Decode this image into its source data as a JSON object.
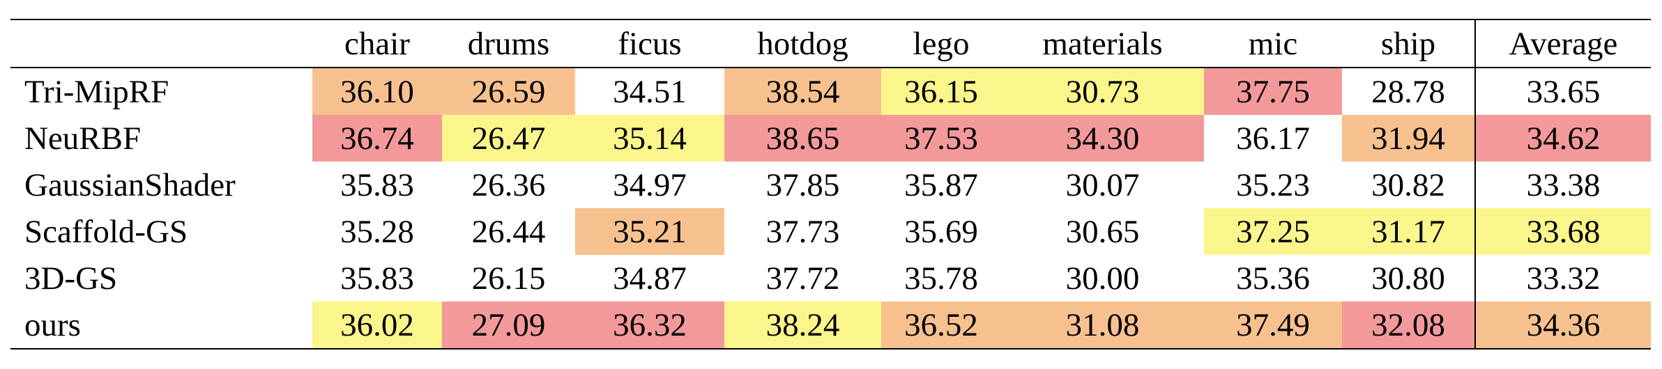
{
  "table": {
    "columns": [
      "chair",
      "drums",
      "ficus",
      "hotdog",
      "lego",
      "materials",
      "mic",
      "ship",
      "Average"
    ],
    "rows": [
      {
        "label": "Tri-MipRF",
        "cells": [
          "36.10",
          "26.59",
          "34.51",
          "38.54",
          "36.15",
          "30.73",
          "37.75",
          "28.78",
          "33.65"
        ],
        "colors": [
          "#f7c18f",
          "#f7c18f",
          null,
          "#f7c18f",
          "#fbf68b",
          "#fbf68b",
          "#f4999a",
          null,
          null
        ]
      },
      {
        "label": "NeuRBF",
        "cells": [
          "36.74",
          "26.47",
          "35.14",
          "38.65",
          "37.53",
          "34.30",
          "36.17",
          "31.94",
          "34.62"
        ],
        "colors": [
          "#f4999a",
          "#fbf68b",
          "#fbf68b",
          "#f4999a",
          "#f4999a",
          "#f4999a",
          null,
          "#f7c18f",
          "#f4999a"
        ]
      },
      {
        "label": "GaussianShader",
        "cells": [
          "35.83",
          "26.36",
          "34.97",
          "37.85",
          "35.87",
          "30.07",
          "35.23",
          "30.82",
          "33.38"
        ],
        "colors": [
          null,
          null,
          null,
          null,
          null,
          null,
          null,
          null,
          null
        ]
      },
      {
        "label": "Scaffold-GS",
        "cells": [
          "35.28",
          "26.44",
          "35.21",
          "37.73",
          "35.69",
          "30.65",
          "37.25",
          "31.17",
          "33.68"
        ],
        "colors": [
          null,
          null,
          "#f7c18f",
          null,
          null,
          null,
          "#fbf68b",
          "#fbf68b",
          "#fbf68b"
        ]
      },
      {
        "label": "3D-GS",
        "cells": [
          "35.83",
          "26.15",
          "34.87",
          "37.72",
          "35.78",
          "30.00",
          "35.36",
          "30.80",
          "33.32"
        ],
        "colors": [
          null,
          null,
          null,
          null,
          null,
          null,
          null,
          null,
          null
        ]
      },
      {
        "label": "ours",
        "cells": [
          "36.02",
          "27.09",
          "36.32",
          "38.24",
          "36.52",
          "31.08",
          "37.49",
          "32.08",
          "34.36"
        ],
        "colors": [
          "#fbf68b",
          "#f4999a",
          "#f4999a",
          "#fbf68b",
          "#f7c18f",
          "#f7c18f",
          "#f7c18f",
          "#f4999a",
          "#f7c18f"
        ]
      }
    ]
  }
}
